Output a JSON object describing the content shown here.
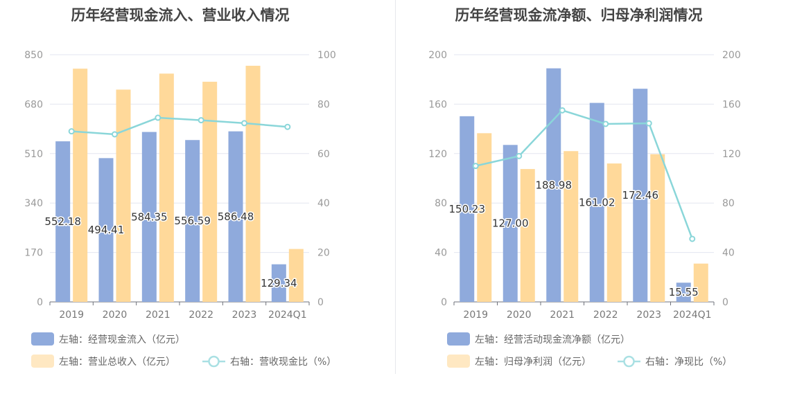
{
  "chart_data": [
    {
      "type": "bar",
      "title": "历年经营现金流入、营业收入情况",
      "categories": [
        "2019",
        "2020",
        "2021",
        "2022",
        "2023",
        "2024Q1"
      ],
      "left_axis": {
        "ylim": [
          0,
          850
        ],
        "ticks": [
          "0",
          "170",
          "340",
          "510",
          "680",
          "850"
        ]
      },
      "right_axis": {
        "ylim": [
          0,
          100
        ],
        "ticks": [
          "0",
          "20",
          "40",
          "60",
          "80",
          "100"
        ]
      },
      "series": [
        {
          "name": "左轴：经营现金流入（亿元）",
          "kind": "bar",
          "axis": "left",
          "color": "#8faadc",
          "values": [
            552.18,
            494.41,
            584.35,
            556.59,
            586.48,
            129.34
          ],
          "labels": [
            "552.18",
            "494.41",
            "584.35",
            "556.59",
            "586.48",
            "129.34"
          ]
        },
        {
          "name": "左轴：营业总收入（亿元）",
          "kind": "bar",
          "axis": "left",
          "color": "#ffd99a",
          "values": [
            802,
            730,
            785,
            757,
            812,
            182
          ]
        },
        {
          "name": "右轴：营收现金比（%）",
          "kind": "line",
          "axis": "right",
          "color": "#8ad6d9",
          "values": [
            69.0,
            67.8,
            74.5,
            73.5,
            72.3,
            70.8
          ]
        }
      ],
      "legend": "bottom-left",
      "grid": true
    },
    {
      "type": "bar",
      "title": "历年经营现金流净额、归母净利润情况",
      "categories": [
        "2019",
        "2020",
        "2021",
        "2022",
        "2023",
        "2024Q1"
      ],
      "left_axis": {
        "ylim": [
          0,
          200
        ],
        "ticks": [
          "0",
          "40",
          "80",
          "120",
          "160",
          "200"
        ]
      },
      "right_axis": {
        "ylim": [
          0,
          200
        ],
        "ticks": [
          "0",
          "40",
          "80",
          "120",
          "160",
          "200"
        ]
      },
      "series": [
        {
          "name": "左轴：经营活动现金流净额（亿元）",
          "kind": "bar",
          "axis": "left",
          "color": "#8faadc",
          "values": [
            150.23,
            127.0,
            188.98,
            161.02,
            172.46,
            15.55
          ],
          "labels": [
            "150.23",
            "127.00",
            "188.98",
            "161.02",
            "172.46",
            "15.55"
          ]
        },
        {
          "name": "左轴：归母净利润（亿元）",
          "kind": "bar",
          "axis": "left",
          "color": "#ffd99a",
          "values": [
            136.5,
            107.5,
            122.0,
            112.0,
            119.5,
            31.0
          ]
        },
        {
          "name": "右轴：净现比（%）",
          "kind": "line",
          "axis": "right",
          "color": "#8ad6d9",
          "values": [
            110.0,
            118.0,
            155.0,
            144.0,
            144.5,
            51.0
          ]
        }
      ],
      "legend": "bottom-left",
      "grid": true
    }
  ]
}
